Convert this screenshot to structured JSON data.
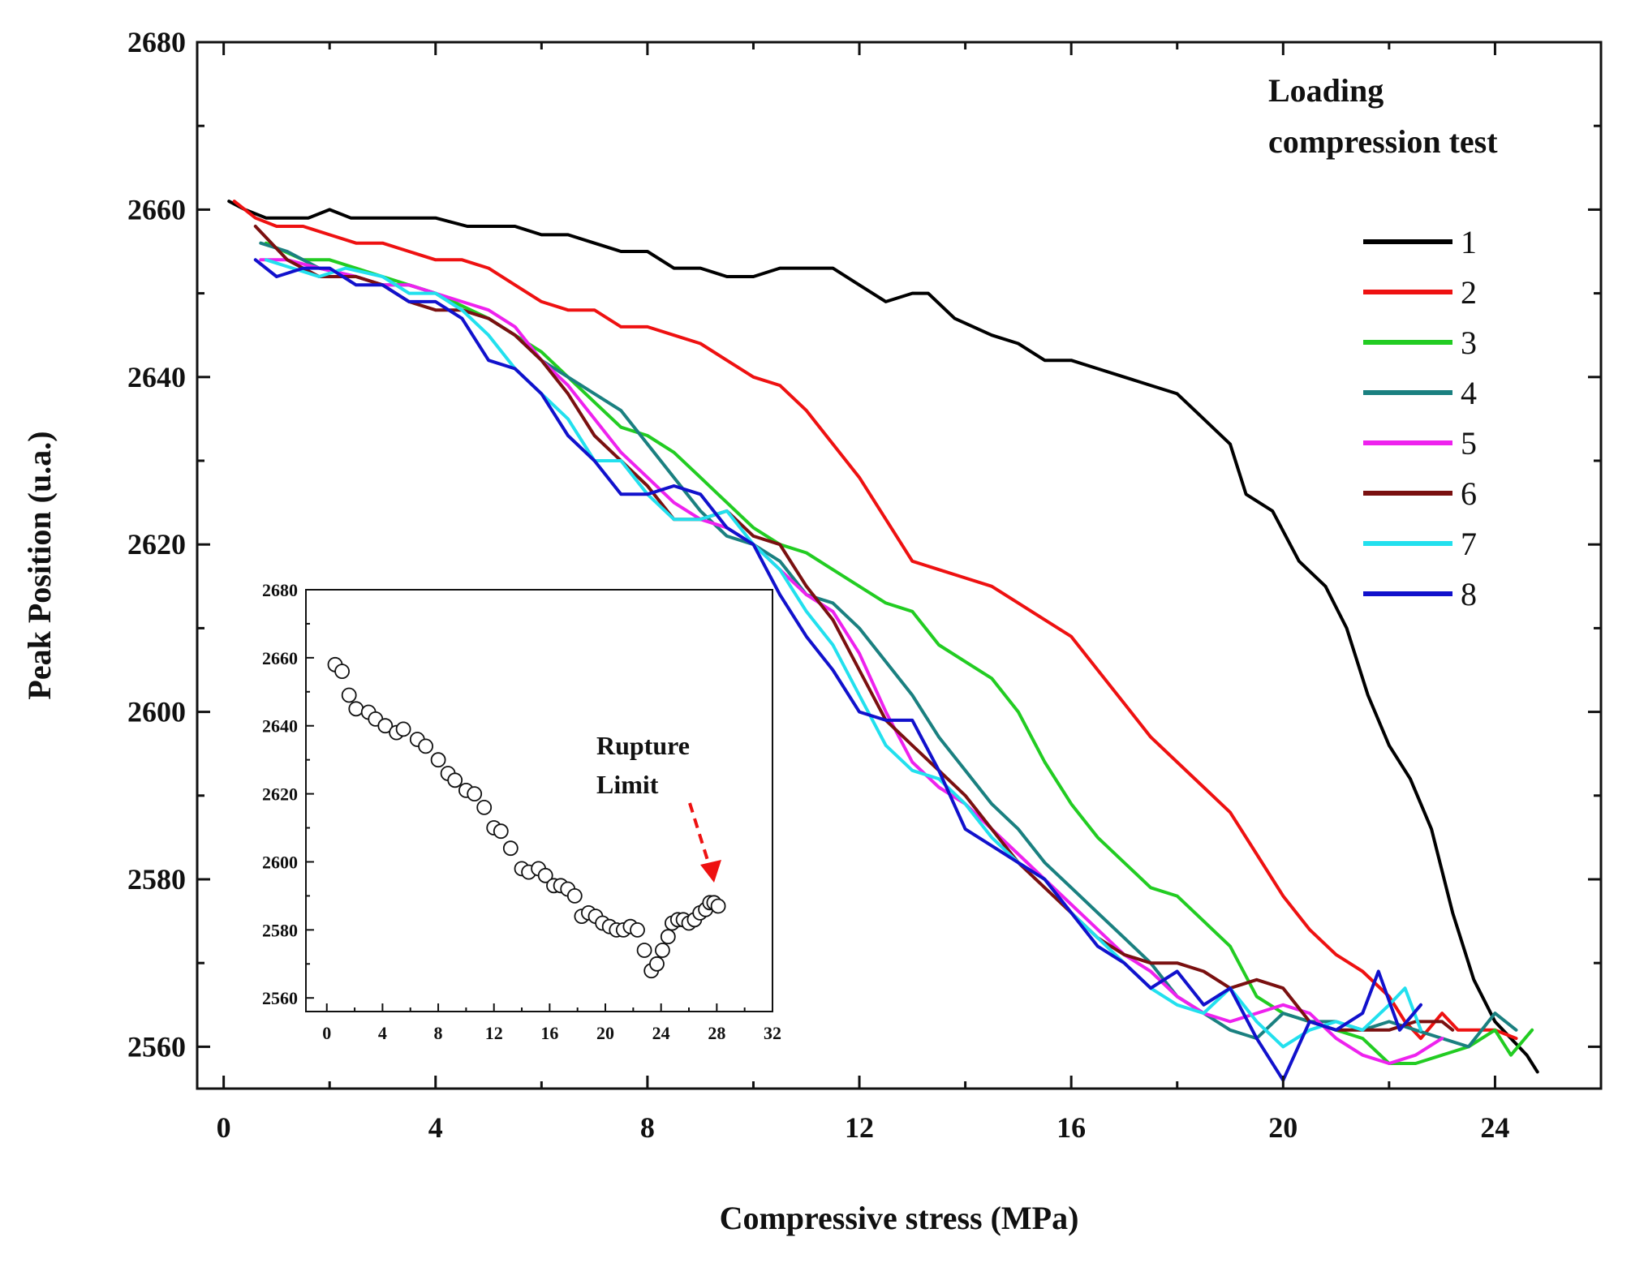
{
  "chart_data": [
    {
      "type": "line",
      "title": "",
      "xlabel": "Compressive stress (MPa)",
      "ylabel": "Peak Position (u.a.)",
      "xlim": [
        -0.5,
        26
      ],
      "ylim": [
        2555,
        2680
      ],
      "xticks": [
        "0",
        "4",
        "8",
        "12",
        "16",
        "20",
        "24"
      ],
      "yticks": [
        "2560",
        "2580",
        "2600",
        "2620",
        "2640",
        "2660",
        "2680"
      ],
      "legend_title": [
        "Loading",
        "compression test"
      ],
      "legend_position": "top-right",
      "series": [
        {
          "name": "1",
          "color": "#000000",
          "x": [
            0.1,
            0.4,
            0.8,
            1.2,
            1.6,
            2.0,
            2.4,
            3.0,
            4.0,
            4.6,
            5.5,
            6.0,
            6.5,
            7.0,
            7.5,
            8.0,
            8.5,
            9.0,
            9.5,
            10.0,
            10.5,
            11.0,
            11.5,
            12.0,
            12.5,
            13.0,
            13.3,
            13.8,
            14.5,
            15.0,
            15.5,
            16.0,
            16.5,
            17.0,
            17.5,
            18.0,
            18.5,
            19.0,
            19.3,
            19.8,
            20.3,
            20.8,
            21.2,
            21.6,
            22.0,
            22.4,
            22.8,
            23.2,
            23.6,
            24.0,
            24.3,
            24.6,
            24.8
          ],
          "y": [
            2661,
            2660,
            2659,
            2659,
            2659,
            2660,
            2659,
            2659,
            2659,
            2658,
            2658,
            2657,
            2657,
            2656,
            2655,
            2655,
            2653,
            2653,
            2652,
            2652,
            2653,
            2653,
            2653,
            2651,
            2649,
            2650,
            2650,
            2647,
            2645,
            2644,
            2642,
            2642,
            2641,
            2640,
            2639,
            2638,
            2635,
            2632,
            2626,
            2624,
            2618,
            2615,
            2610,
            2602,
            2596,
            2592,
            2586,
            2576,
            2568,
            2563,
            2561,
            2559,
            2557
          ]
        },
        {
          "name": "2",
          "color": "#ee1111",
          "x": [
            0.2,
            0.6,
            1.0,
            1.5,
            2.0,
            2.5,
            3.0,
            3.5,
            4.0,
            4.5,
            5.0,
            5.5,
            6.0,
            6.5,
            7.0,
            7.5,
            8.0,
            8.5,
            9.0,
            9.5,
            10.0,
            10.5,
            11.0,
            11.5,
            12.0,
            12.5,
            13.0,
            13.5,
            14.0,
            14.5,
            15.0,
            15.5,
            16.0,
            16.5,
            17.0,
            17.5,
            18.0,
            18.5,
            19.0,
            19.5,
            20.0,
            20.5,
            21.0,
            21.5,
            22.0,
            22.3,
            22.6,
            23.0,
            23.3,
            23.6,
            24.0,
            24.4
          ],
          "y": [
            2661,
            2659,
            2658,
            2658,
            2657,
            2656,
            2656,
            2655,
            2654,
            2654,
            2653,
            2651,
            2649,
            2648,
            2648,
            2646,
            2646,
            2645,
            2644,
            2642,
            2640,
            2639,
            2636,
            2632,
            2628,
            2623,
            2618,
            2617,
            2616,
            2615,
            2613,
            2611,
            2609,
            2605,
            2601,
            2597,
            2594,
            2591,
            2588,
            2583,
            2578,
            2574,
            2571,
            2569,
            2566,
            2563,
            2561,
            2564,
            2562,
            2562,
            2562,
            2561
          ]
        },
        {
          "name": "3",
          "color": "#22cc22",
          "x": [
            0.8,
            1.5,
            2.0,
            2.5,
            3.0,
            4.0,
            5.0,
            6.0,
            6.5,
            7.0,
            7.5,
            8.0,
            8.5,
            9.0,
            9.5,
            10.0,
            10.5,
            11.0,
            11.5,
            12.0,
            12.5,
            13.0,
            13.5,
            14.0,
            14.5,
            15.0,
            15.5,
            16.0,
            16.5,
            17.0,
            17.5,
            18.0,
            18.5,
            19.0,
            19.5,
            20.0,
            20.5,
            21.0,
            21.5,
            22.0,
            22.5,
            23.0,
            23.5,
            24.0,
            24.3,
            24.7
          ],
          "y": [
            2656,
            2654,
            2654,
            2653,
            2652,
            2650,
            2647,
            2643,
            2640,
            2637,
            2634,
            2633,
            2631,
            2628,
            2625,
            2622,
            2620,
            2619,
            2617,
            2615,
            2613,
            2612,
            2608,
            2606,
            2604,
            2600,
            2594,
            2589,
            2585,
            2582,
            2579,
            2578,
            2575,
            2572,
            2566,
            2564,
            2563,
            2562,
            2561,
            2558,
            2558,
            2559,
            2560,
            2562,
            2559,
            2562
          ]
        },
        {
          "name": "4",
          "color": "#1a8080",
          "x": [
            0.7,
            1.2,
            1.8,
            2.5,
            3.0,
            3.5,
            4.0,
            4.5,
            5.0,
            5.5,
            6.0,
            6.5,
            7.0,
            7.5,
            8.0,
            8.5,
            9.0,
            9.5,
            10.0,
            10.5,
            11.0,
            11.5,
            12.0,
            12.5,
            13.0,
            13.5,
            14.0,
            14.5,
            15.0,
            15.5,
            16.0,
            16.5,
            17.0,
            17.5,
            18.0,
            18.5,
            19.0,
            19.5,
            20.0,
            20.5,
            21.0,
            21.5,
            22.0,
            22.5,
            23.0,
            23.5,
            24.0,
            24.4
          ],
          "y": [
            2656,
            2655,
            2653,
            2652,
            2651,
            2651,
            2650,
            2648,
            2647,
            2645,
            2642,
            2640,
            2638,
            2636,
            2632,
            2628,
            2624,
            2621,
            2620,
            2618,
            2614,
            2613,
            2610,
            2606,
            2602,
            2597,
            2593,
            2589,
            2586,
            2582,
            2579,
            2576,
            2573,
            2570,
            2566,
            2564,
            2562,
            2561,
            2564,
            2563,
            2563,
            2562,
            2563,
            2562,
            2561,
            2560,
            2564,
            2562
          ]
        },
        {
          "name": "5",
          "color": "#ee22ee",
          "x": [
            0.7,
            1.2,
            1.8,
            2.5,
            3.0,
            3.5,
            4.0,
            4.5,
            5.0,
            5.5,
            6.0,
            6.5,
            7.0,
            7.5,
            8.0,
            8.5,
            9.0,
            9.5,
            10.0,
            10.5,
            11.0,
            11.5,
            12.0,
            12.5,
            13.0,
            13.5,
            14.0,
            14.5,
            15.0,
            15.5,
            16.0,
            16.5,
            17.0,
            17.5,
            18.0,
            18.5,
            19.0,
            19.5,
            20.0,
            20.5,
            21.0,
            21.5,
            22.0,
            22.5,
            23.0
          ],
          "y": [
            2654,
            2654,
            2653,
            2652,
            2651,
            2651,
            2650,
            2649,
            2648,
            2646,
            2642,
            2639,
            2635,
            2631,
            2628,
            2625,
            2623,
            2622,
            2620,
            2617,
            2614,
            2612,
            2607,
            2600,
            2594,
            2591,
            2589,
            2586,
            2583,
            2580,
            2577,
            2574,
            2571,
            2569,
            2566,
            2564,
            2563,
            2564,
            2565,
            2564,
            2561,
            2559,
            2558,
            2559,
            2561
          ]
        },
        {
          "name": "6",
          "color": "#7a1010",
          "x": [
            0.6,
            1.2,
            1.8,
            2.5,
            3.0,
            3.5,
            4.0,
            4.5,
            5.0,
            5.5,
            6.0,
            6.5,
            7.0,
            7.5,
            8.0,
            8.5,
            9.0,
            9.5,
            10.0,
            10.5,
            11.0,
            11.5,
            12.0,
            12.5,
            13.0,
            13.5,
            14.0,
            14.5,
            15.0,
            15.5,
            16.0,
            16.5,
            17.0,
            17.5,
            18.0,
            18.5,
            19.0,
            19.5,
            20.0,
            20.5,
            21.0,
            21.5,
            22.0,
            22.5,
            23.0,
            23.2
          ],
          "y": [
            2658,
            2654,
            2652,
            2652,
            2651,
            2649,
            2648,
            2648,
            2647,
            2645,
            2642,
            2638,
            2633,
            2630,
            2627,
            2623,
            2623,
            2624,
            2621,
            2620,
            2615,
            2611,
            2605,
            2599,
            2596,
            2593,
            2590,
            2586,
            2582,
            2579,
            2576,
            2573,
            2571,
            2570,
            2570,
            2569,
            2567,
            2568,
            2567,
            2563,
            2562,
            2562,
            2562,
            2563,
            2563,
            2562
          ]
        },
        {
          "name": "7",
          "color": "#22e0ee",
          "x": [
            0.8,
            1.3,
            1.8,
            2.3,
            3.0,
            3.5,
            4.0,
            4.5,
            5.0,
            5.5,
            6.0,
            6.5,
            7.0,
            7.5,
            8.0,
            8.5,
            9.0,
            9.5,
            10.0,
            10.5,
            11.0,
            11.5,
            12.0,
            12.5,
            13.0,
            13.5,
            14.0,
            14.5,
            15.0,
            15.5,
            16.0,
            16.5,
            17.0,
            17.5,
            18.0,
            18.5,
            19.0,
            19.5,
            20.0,
            20.5,
            21.0,
            21.5,
            22.0,
            22.3,
            22.6
          ],
          "y": [
            2654,
            2653,
            2652,
            2653,
            2652,
            2650,
            2650,
            2648,
            2645,
            2641,
            2638,
            2635,
            2630,
            2630,
            2626,
            2623,
            2623,
            2624,
            2620,
            2617,
            2612,
            2608,
            2602,
            2596,
            2593,
            2592,
            2589,
            2585,
            2582,
            2580,
            2576,
            2573,
            2570,
            2567,
            2565,
            2564,
            2567,
            2563,
            2560,
            2562,
            2563,
            2562,
            2565,
            2567,
            2562
          ]
        },
        {
          "name": "8",
          "color": "#1111cc",
          "x": [
            0.6,
            1.0,
            1.5,
            2.0,
            2.5,
            3.0,
            3.5,
            4.0,
            4.5,
            5.0,
            5.5,
            6.0,
            6.5,
            7.0,
            7.5,
            8.0,
            8.5,
            9.0,
            9.5,
            10.0,
            10.5,
            11.0,
            11.5,
            12.0,
            12.5,
            13.0,
            13.5,
            14.0,
            14.5,
            15.0,
            15.5,
            16.0,
            16.5,
            17.0,
            17.5,
            18.0,
            18.5,
            19.0,
            19.5,
            20.0,
            20.5,
            21.0,
            21.5,
            21.8,
            22.2,
            22.6
          ],
          "y": [
            2654,
            2652,
            2653,
            2653,
            2651,
            2651,
            2649,
            2649,
            2647,
            2642,
            2641,
            2638,
            2633,
            2630,
            2626,
            2626,
            2627,
            2626,
            2622,
            2620,
            2614,
            2609,
            2605,
            2600,
            2599,
            2599,
            2593,
            2586,
            2584,
            2582,
            2580,
            2576,
            2572,
            2570,
            2567,
            2569,
            2565,
            2567,
            2561,
            2556,
            2563,
            2562,
            2564,
            2569,
            2562,
            2565
          ]
        }
      ]
    },
    {
      "type": "scatter",
      "title": "",
      "xlim": [
        -1.5,
        32
      ],
      "ylim": [
        2556,
        2680
      ],
      "xticks": [
        "0",
        "4",
        "8",
        "12",
        "16",
        "20",
        "24",
        "28",
        "32"
      ],
      "yticks": [
        "2560",
        "2580",
        "2600",
        "2620",
        "2640",
        "2660",
        "2680"
      ],
      "annotation": [
        "Rupture",
        "Limit"
      ],
      "annotation_arrow_color": "#ee1111",
      "series": [
        {
          "name": "inset",
          "marker": "open-circle",
          "x": [
            0.6,
            1.1,
            1.6,
            2.1,
            3.0,
            3.5,
            4.2,
            5.0,
            5.5,
            6.5,
            7.1,
            8.0,
            8.7,
            9.2,
            10.0,
            10.6,
            11.3,
            12.0,
            12.5,
            13.2,
            14.0,
            14.5,
            15.2,
            15.7,
            16.3,
            16.8,
            17.3,
            17.8,
            18.3,
            18.8,
            19.3,
            19.8,
            20.3,
            20.8,
            21.3,
            21.8,
            22.3,
            22.8,
            23.3,
            23.7,
            24.1,
            24.5,
            24.8,
            25.2,
            25.6,
            26.0,
            26.4,
            26.8,
            27.2,
            27.5,
            27.8,
            28.1
          ],
          "y": [
            2658,
            2656,
            2649,
            2645,
            2644,
            2642,
            2640,
            2638,
            2639,
            2636,
            2634,
            2630,
            2626,
            2624,
            2621,
            2620,
            2616,
            2610,
            2609,
            2604,
            2598,
            2597,
            2598,
            2596,
            2593,
            2593,
            2592,
            2590,
            2584,
            2585,
            2584,
            2582,
            2581,
            2580,
            2580,
            2581,
            2580,
            2574,
            2568,
            2570,
            2574,
            2578,
            2582,
            2583,
            2583,
            2582,
            2583,
            2585,
            2586,
            2588,
            2588,
            2587
          ]
        }
      ]
    }
  ]
}
